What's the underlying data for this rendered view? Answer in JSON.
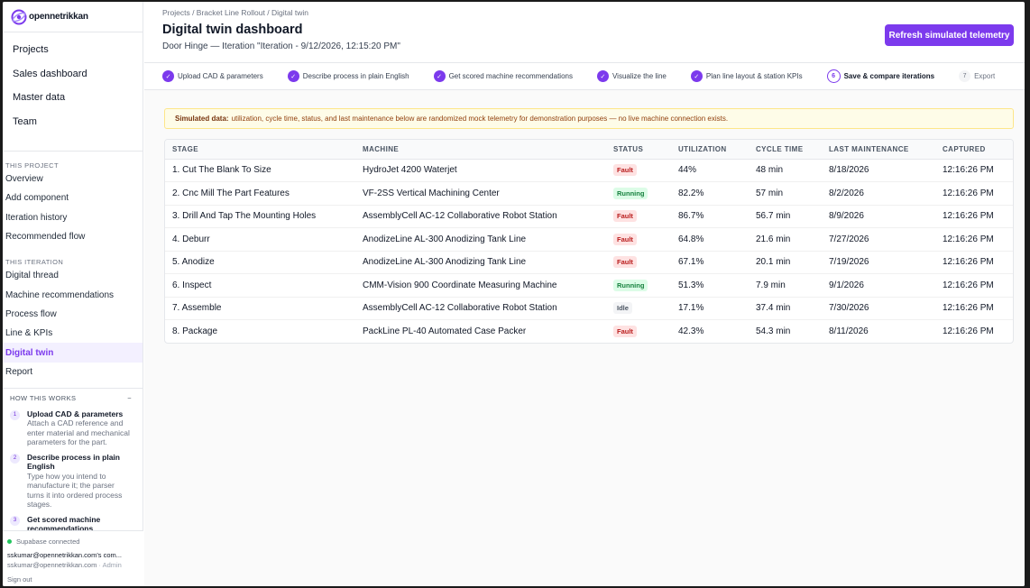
{
  "brand": {
    "name": "opennetrikkan",
    "accent": "#7c3aed"
  },
  "top_nav": [
    "Projects",
    "Sales dashboard",
    "Master data",
    "Team"
  ],
  "project_section": {
    "label": "THIS PROJECT",
    "items": [
      "Overview",
      "Add component",
      "Iteration history",
      "Recommended flow"
    ]
  },
  "iteration_section": {
    "label": "THIS ITERATION",
    "items": [
      "Digital thread",
      "Machine recommendations",
      "Process flow",
      "Line & KPIs",
      "Digital twin",
      "Report"
    ],
    "active": "Digital twin"
  },
  "how_it_works": {
    "label": "HOW THIS WORKS",
    "collapse_icon": "−",
    "steps": [
      {
        "num": "1",
        "title": "Upload CAD & parameters",
        "desc": "Attach a CAD reference and enter material and mechanical parameters for the part."
      },
      {
        "num": "2",
        "title": "Describe process in plain English",
        "desc": "Type how you intend to manufacture it; the parser turns it into ordered process stages."
      },
      {
        "num": "3",
        "title": "Get scored machine recommendations",
        "desc": ""
      }
    ]
  },
  "footer": {
    "status": "Supabase connected",
    "org": "sskumar@opennetrikkan.com's com...",
    "email": "sskumar@opennetrikkan.com",
    "role": "· Admin",
    "sign_out": "Sign out"
  },
  "header": {
    "breadcrumb": "Projects / Bracket Line Rollout / Digital twin",
    "title": "Digital twin dashboard",
    "subtitle": "Door Hinge — Iteration \"Iteration - 9/12/2026, 12:15:20 PM\"",
    "refresh_label": "Refresh simulated telemetry"
  },
  "workflow_steps": [
    {
      "label": "Upload CAD & parameters",
      "state": "done",
      "marker": "✓"
    },
    {
      "label": "Describe process in plain English",
      "state": "done",
      "marker": "✓"
    },
    {
      "label": "Get scored machine recommendations",
      "state": "done",
      "marker": "✓"
    },
    {
      "label": "Visualize the line",
      "state": "done",
      "marker": "✓"
    },
    {
      "label": "Plan line layout & station KPIs",
      "state": "done",
      "marker": "✓"
    },
    {
      "label": "Save & compare iterations",
      "state": "current",
      "marker": "6"
    },
    {
      "label": "Export",
      "state": "future",
      "marker": "7"
    }
  ],
  "banner": {
    "strong": "Simulated data:",
    "text": "utilization, cycle time, status, and last maintenance below are randomized mock telemetry for demonstration purposes — no live machine connection exists."
  },
  "table": {
    "columns": [
      "STAGE",
      "MACHINE",
      "STATUS",
      "UTILIZATION",
      "CYCLE TIME",
      "LAST MAINTENANCE",
      "CAPTURED"
    ],
    "rows": [
      [
        "1. Cut The Blank To Size",
        "HydroJet 4200 Waterjet",
        "Fault",
        "44%",
        "48 min",
        "8/18/2026",
        "12:16:26 PM"
      ],
      [
        "2. Cnc Mill The Part Features",
        "VF-2SS Vertical Machining Center",
        "Running",
        "82.2%",
        "57 min",
        "8/2/2026",
        "12:16:26 PM"
      ],
      [
        "3. Drill And Tap The Mounting Holes",
        "AssemblyCell AC-12 Collaborative Robot Station",
        "Fault",
        "86.7%",
        "56.7 min",
        "8/9/2026",
        "12:16:26 PM"
      ],
      [
        "4. Deburr",
        "AnodizeLine AL-300 Anodizing Tank Line",
        "Fault",
        "64.8%",
        "21.6 min",
        "7/27/2026",
        "12:16:26 PM"
      ],
      [
        "5. Anodize",
        "AnodizeLine AL-300 Anodizing Tank Line",
        "Fault",
        "67.1%",
        "20.1 min",
        "7/19/2026",
        "12:16:26 PM"
      ],
      [
        "6. Inspect",
        "CMM-Vision 900 Coordinate Measuring Machine",
        "Running",
        "51.3%",
        "7.9 min",
        "9/1/2026",
        "12:16:26 PM"
      ],
      [
        "7. Assemble",
        "AssemblyCell AC-12 Collaborative Robot Station",
        "Idle",
        "17.1%",
        "37.4 min",
        "7/30/2026",
        "12:16:26 PM"
      ],
      [
        "8. Package",
        "PackLine PL-40 Automated Case Packer",
        "Fault",
        "42.3%",
        "54.3 min",
        "8/11/2026",
        "12:16:26 PM"
      ]
    ]
  }
}
